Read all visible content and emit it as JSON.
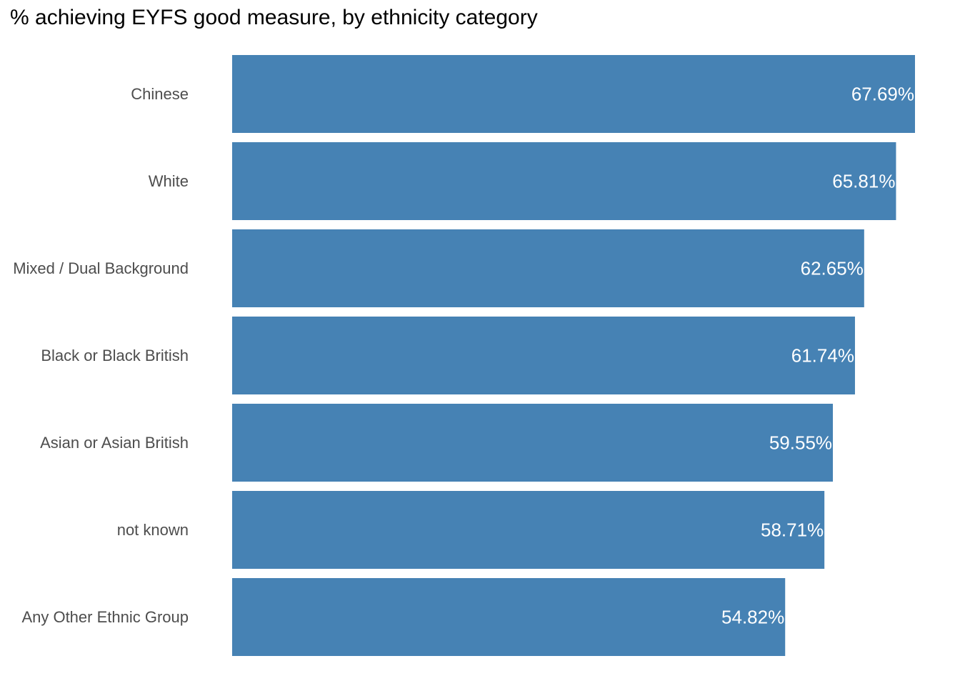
{
  "chart_data": {
    "type": "bar",
    "orientation": "horizontal",
    "title": "% achieving EYFS good measure, by ethnicity category",
    "xlabel": "",
    "ylabel": "",
    "categories": [
      "Chinese",
      "White",
      "Mixed / Dual Background",
      "Black or Black British",
      "Asian or Asian British",
      "not known",
      "Any Other Ethnic Group"
    ],
    "values": [
      67.69,
      65.81,
      62.65,
      61.74,
      59.55,
      58.71,
      54.82
    ],
    "value_labels": [
      "67.69%",
      "65.81%",
      "62.65%",
      "61.74%",
      "59.55%",
      "58.71%",
      "54.82%"
    ],
    "xlim": [
      0,
      67.69
    ],
    "grid": false,
    "legend": "none",
    "bar_color": "#4682B4",
    "label_color": "#ffffff"
  }
}
